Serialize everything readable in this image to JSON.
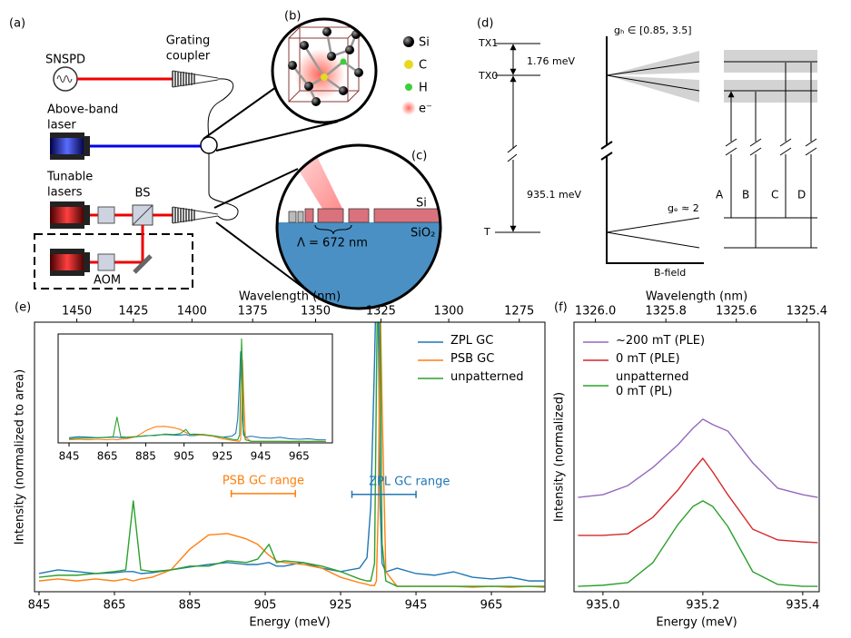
{
  "panel_a": {
    "label": "(a)",
    "snspd": "SNSPD",
    "grating_coupler": [
      "Grating",
      "coupler"
    ],
    "above_band_laser": [
      "Above-band",
      "laser"
    ],
    "tunable_lasers": [
      "Tunable",
      "lasers"
    ],
    "bs": "BS",
    "aom": "AOM"
  },
  "panel_b": {
    "label": "(b)",
    "legend": [
      "Si",
      "C",
      "H",
      "e⁻"
    ]
  },
  "panel_c": {
    "label": "(c)",
    "si": "Si",
    "sio2": "SiO₂",
    "period": "Λ = 672 nm"
  },
  "panel_d": {
    "label": "(d)",
    "levels": [
      "TX1",
      "TX0",
      "T"
    ],
    "splitting": "1.76 meV",
    "gap": "935.1 meV",
    "gh": "gₕ ∈ [0.85, 3.5]",
    "ge": "gₑ ≈ 2",
    "xlabel": "B-field",
    "transitions": [
      "A",
      "B",
      "C",
      "D"
    ]
  },
  "chart_data": [
    {
      "type": "line",
      "panel": "(e)",
      "xlabel": "Energy (meV)",
      "x2label": "Wavelength (nm)",
      "ylabel": "Intensity (normalized to area)",
      "xlim": [
        843.8,
        979.2
      ],
      "ylim": [
        0,
        95
      ],
      "xticks": [
        845,
        865,
        885,
        905,
        925,
        945,
        965
      ],
      "x2ticks": [
        1450,
        1425,
        1400,
        1375,
        1350,
        1325,
        1300,
        1275
      ],
      "legend": "upper right",
      "x": [
        845,
        850,
        855,
        860,
        865,
        868,
        870,
        872,
        875,
        880,
        885,
        890,
        895,
        900,
        903,
        906,
        908,
        910,
        915,
        920,
        925,
        930,
        932,
        933,
        934,
        934.5,
        935,
        935.5,
        936,
        937,
        940,
        945,
        950,
        955,
        960,
        965,
        970,
        975,
        979
      ],
      "series": [
        {
          "name": "ZPL GC",
          "color": "#1f77b4",
          "values": [
            6.4,
            7.7,
            7.1,
            6.4,
            6.7,
            7.1,
            7.1,
            6.4,
            6.7,
            7.7,
            8.7,
            9.6,
            10.3,
            9.6,
            9.6,
            10.3,
            9.0,
            9.0,
            10.3,
            8.3,
            7.1,
            8.3,
            12,
            30,
            81,
            113,
            97,
            30,
            10,
            7,
            8.3,
            6.4,
            5.8,
            7,
            5.1,
            4.5,
            5.1,
            3.8,
            3.8
          ]
        },
        {
          "name": "PSB GC",
          "color": "#ff7f0e",
          "values": [
            3.8,
            4.5,
            3.8,
            4.5,
            3.8,
            4.5,
            3.8,
            4.5,
            5.1,
            7.7,
            15,
            20,
            20.5,
            18.6,
            16.7,
            12.8,
            10.9,
            10.3,
            9.6,
            8.3,
            5.1,
            3.2,
            2.6,
            2.2,
            2.2,
            3.8,
            30,
            103,
            65,
            7,
            1.9,
            1.9,
            1.9,
            1.9,
            1.6,
            1.9,
            1.6,
            1.9,
            1.6
          ]
        },
        {
          "name": "unpatterned",
          "color": "#2ca02c",
          "values": [
            5.1,
            5.8,
            5.8,
            6.4,
            7.1,
            7.7,
            32,
            7.7,
            7.1,
            7.7,
            9.0,
            9.0,
            10.9,
            10.3,
            11.5,
            16.7,
            10.3,
            10.9,
            10.3,
            9.0,
            7.1,
            4.5,
            3.8,
            3.8,
            10,
            74,
            129,
            87,
            17,
            3.8,
            1.9,
            1.9,
            1.9,
            1.9,
            1.9,
            1.9,
            1.9,
            1.9,
            1.9
          ]
        }
      ],
      "inset": {
        "xlim": [
          839.3,
          982.4
        ],
        "ylim": [
          0,
          135
        ]
      },
      "annotations": [
        {
          "text": "PSB GC range",
          "x": [
            896,
            913
          ],
          "y": 34.6,
          "color": "#ff7f0e"
        },
        {
          "text": "ZPL GC range",
          "x": [
            928,
            945
          ],
          "y": 34.3,
          "color": "#1f77b4"
        }
      ]
    },
    {
      "type": "line",
      "panel": "(f)",
      "xlabel": "Energy (meV)",
      "x2label": "Wavelength (nm)",
      "ylabel": "Intensity (normalized)",
      "xlim": [
        934.942,
        935.433
      ],
      "ylim": [
        0,
        100
      ],
      "xticks": [
        {
          "value": 935,
          "label": "935.0"
        },
        935.2,
        935.4
      ],
      "x2ticks": [
        {
          "value": 1326,
          "label": "1326.0"
        },
        1325.8,
        1325.6,
        1325.4
      ],
      "legend": "upper left",
      "x": [
        934.95,
        935.0,
        935.05,
        935.1,
        935.15,
        935.18,
        935.2,
        935.22,
        935.25,
        935.3,
        935.35,
        935.4,
        935.43
      ],
      "series": [
        {
          "name": "~200 mT (PLE)",
          "color": "#9467bd",
          "values": [
            35.0,
            36.0,
            39.4,
            46.1,
            54.5,
            60.6,
            64.0,
            62.0,
            59.6,
            47.8,
            38.4,
            36.0,
            35.0
          ]
        },
        {
          "name": "0 mT (PLE)",
          "color": "#d62728",
          "values": [
            20.9,
            20.9,
            21.5,
            27.6,
            37.7,
            45.1,
            49.5,
            44.4,
            36.0,
            23.2,
            19.2,
            18.5,
            18.2
          ]
        },
        {
          "name": "unpatterned\n0 mT (PL)",
          "color": "#2ca02c",
          "values": [
            2.0,
            2.4,
            3.4,
            10.8,
            24.9,
            31.6,
            33.7,
            31.6,
            24.2,
            7.4,
            2.7,
            2.0,
            2.0
          ]
        }
      ]
    }
  ]
}
